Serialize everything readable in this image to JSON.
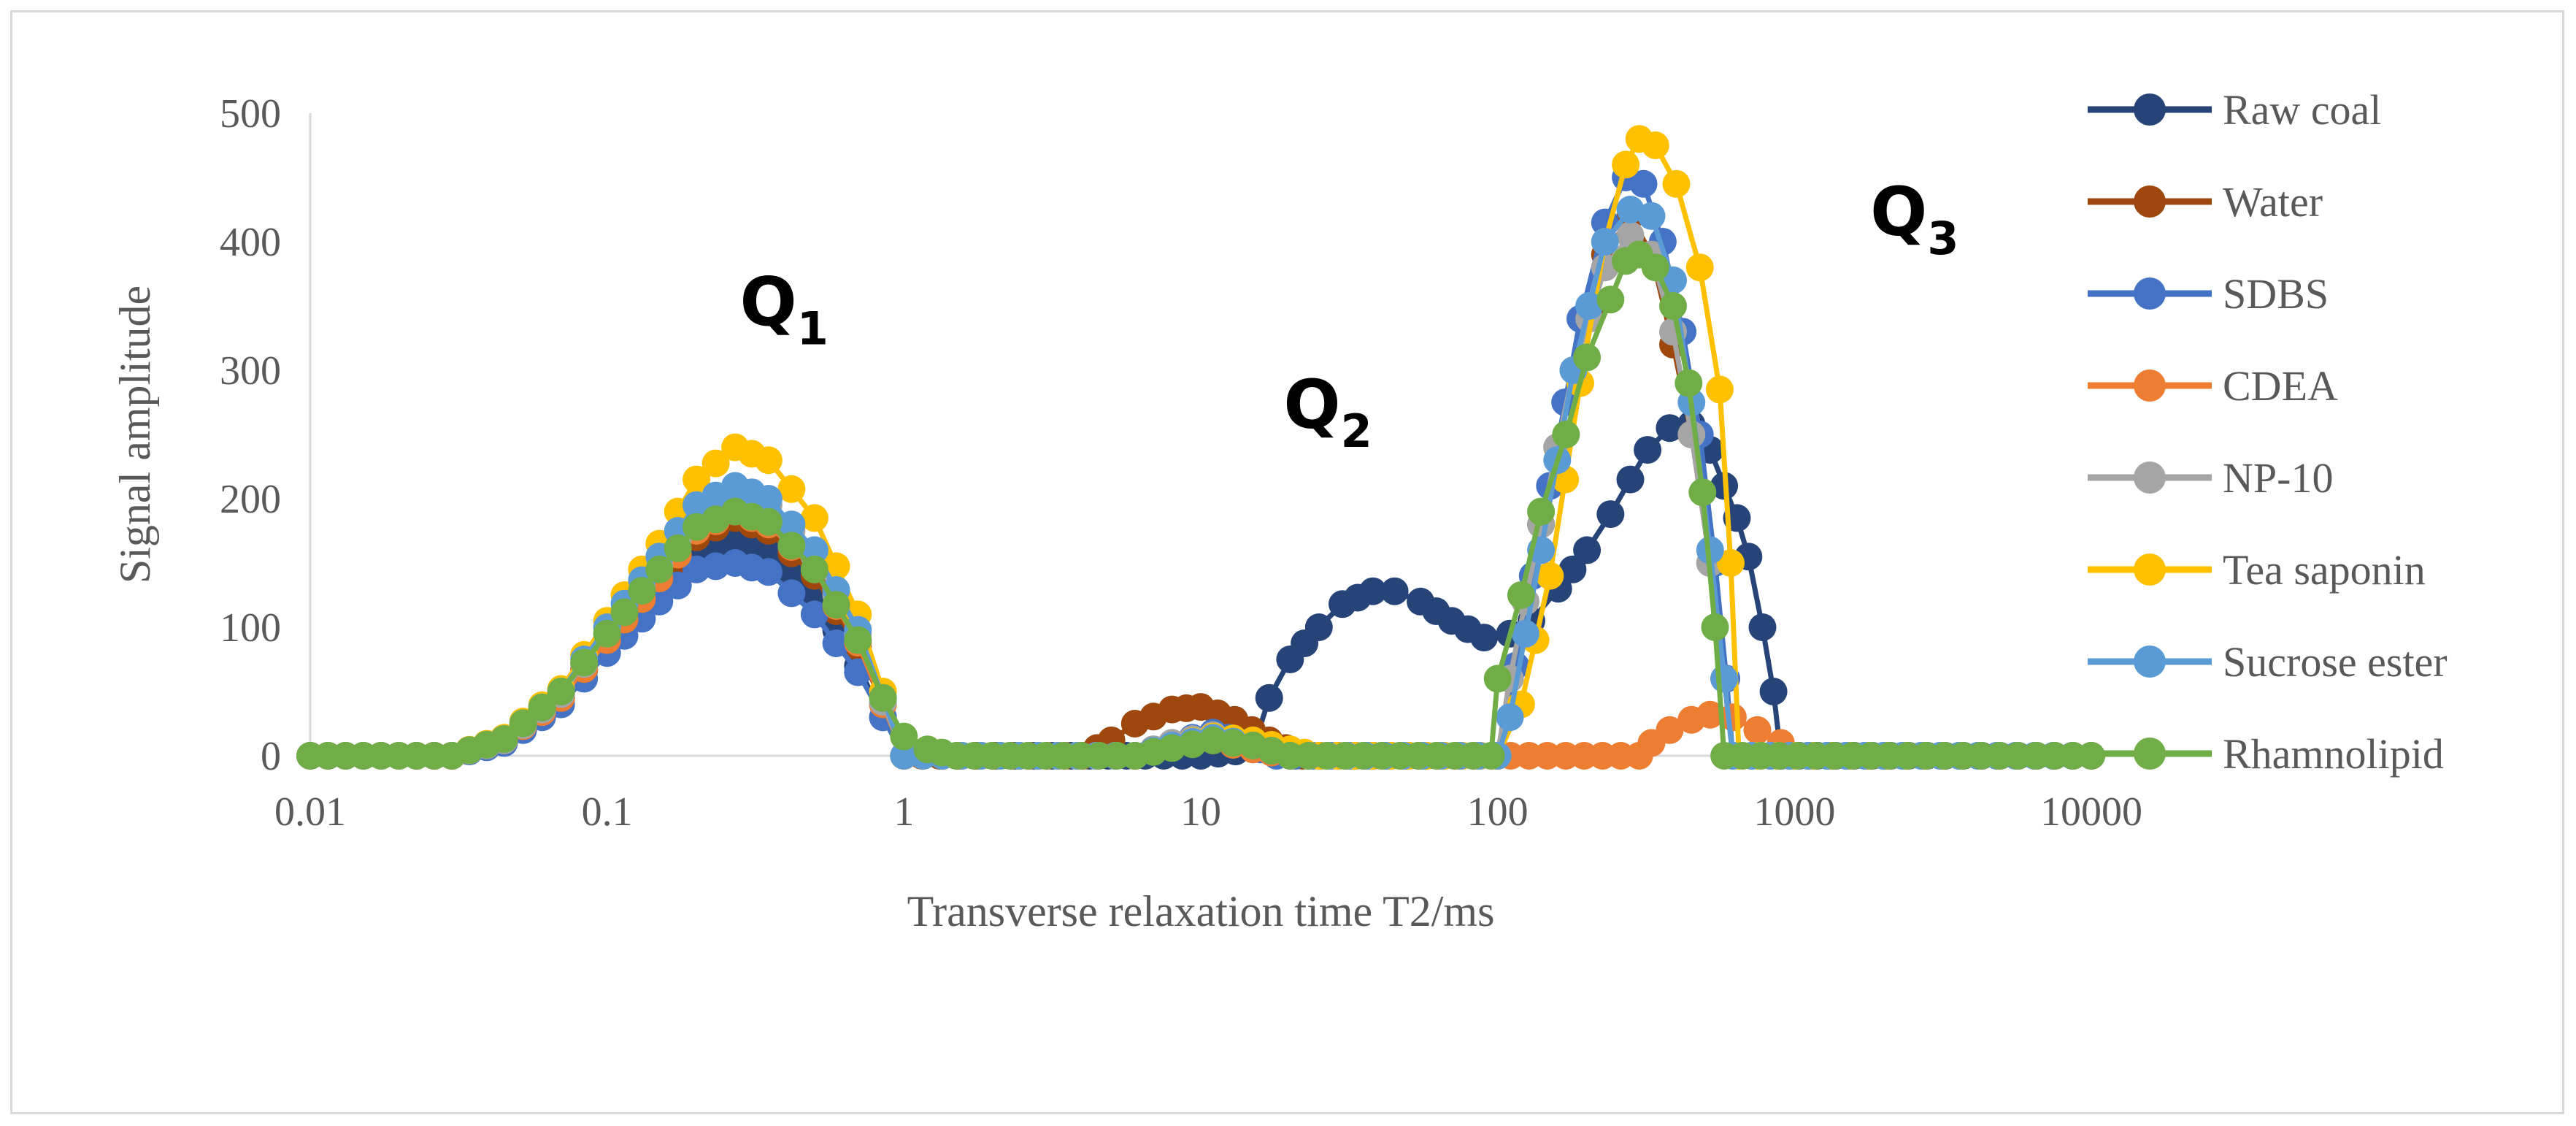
{
  "chart_data": {
    "type": "line",
    "xscale": "log",
    "xlabel": "Transverse relaxation time T2/ms",
    "ylabel": "Signal amplitude",
    "xlim": [
      0.01,
      10000
    ],
    "ylim": [
      0,
      500
    ],
    "x_ticks": [
      "0.01",
      "0.1",
      "1",
      "10",
      "100",
      "1000",
      "10000"
    ],
    "y_ticks": [
      "0",
      "100",
      "200",
      "300",
      "400",
      "500"
    ],
    "legend_position": "right",
    "annotations": [
      {
        "main": "Q",
        "sub": "1",
        "x": 0.28,
        "y": 335
      },
      {
        "main": "Q",
        "sub": "2",
        "x": 19,
        "y": 255
      },
      {
        "main": "Q",
        "sub": "3",
        "x": 1800,
        "y": 405
      }
    ],
    "series": [
      {
        "name": "Raw coal",
        "color": "#264478",
        "points": [
          [
            0.01,
            0
          ],
          [
            0.03,
            0
          ],
          [
            0.045,
            12
          ],
          [
            0.07,
            45
          ],
          [
            0.1,
            88
          ],
          [
            0.15,
            132
          ],
          [
            0.2,
            160
          ],
          [
            0.27,
            168
          ],
          [
            0.35,
            160
          ],
          [
            0.5,
            125
          ],
          [
            0.7,
            70
          ],
          [
            0.85,
            30
          ],
          [
            1,
            0
          ],
          [
            10,
            0
          ],
          [
            15,
            5
          ],
          [
            17,
            45
          ],
          [
            20,
            75
          ],
          [
            25,
            100
          ],
          [
            30,
            118
          ],
          [
            38,
            128
          ],
          [
            45,
            128
          ],
          [
            55,
            120
          ],
          [
            70,
            105
          ],
          [
            90,
            92
          ],
          [
            110,
            95
          ],
          [
            130,
            105
          ],
          [
            160,
            130
          ],
          [
            200,
            160
          ],
          [
            240,
            188
          ],
          [
            280,
            215
          ],
          [
            320,
            238
          ],
          [
            380,
            255
          ],
          [
            450,
            258
          ],
          [
            520,
            238
          ],
          [
            580,
            210
          ],
          [
            640,
            185
          ],
          [
            700,
            155
          ],
          [
            780,
            100
          ],
          [
            850,
            50
          ],
          [
            900,
            0
          ],
          [
            10000,
            0
          ]
        ]
      },
      {
        "name": "Water",
        "color": "#9E480E",
        "points": [
          [
            0.01,
            0
          ],
          [
            0.03,
            0
          ],
          [
            0.045,
            12
          ],
          [
            0.07,
            45
          ],
          [
            0.1,
            90
          ],
          [
            0.15,
            135
          ],
          [
            0.2,
            170
          ],
          [
            0.27,
            185
          ],
          [
            0.35,
            175
          ],
          [
            0.5,
            140
          ],
          [
            0.7,
            85
          ],
          [
            0.85,
            40
          ],
          [
            1,
            0
          ],
          [
            4,
            0
          ],
          [
            5,
            12
          ],
          [
            6,
            25
          ],
          [
            8,
            36
          ],
          [
            10,
            38
          ],
          [
            13,
            28
          ],
          [
            17,
            12
          ],
          [
            22,
            0
          ],
          [
            100,
            0
          ],
          [
            110,
            60
          ],
          [
            140,
            180
          ],
          [
            180,
            300
          ],
          [
            230,
            390
          ],
          [
            280,
            420
          ],
          [
            330,
            390
          ],
          [
            390,
            320
          ],
          [
            450,
            250
          ],
          [
            520,
            150
          ],
          [
            580,
            60
          ],
          [
            620,
            0
          ],
          [
            10000,
            0
          ]
        ]
      },
      {
        "name": "SDBS",
        "color": "#4472C4",
        "points": [
          [
            0.01,
            0
          ],
          [
            0.03,
            0
          ],
          [
            0.045,
            10
          ],
          [
            0.07,
            40
          ],
          [
            0.1,
            80
          ],
          [
            0.15,
            120
          ],
          [
            0.2,
            145
          ],
          [
            0.27,
            150
          ],
          [
            0.35,
            143
          ],
          [
            0.5,
            110
          ],
          [
            0.7,
            65
          ],
          [
            0.85,
            30
          ],
          [
            1,
            0
          ],
          [
            6,
            0
          ],
          [
            8,
            10
          ],
          [
            11,
            18
          ],
          [
            14,
            10
          ],
          [
            18,
            0
          ],
          [
            100,
            0
          ],
          [
            115,
            70
          ],
          [
            150,
            210
          ],
          [
            190,
            340
          ],
          [
            230,
            415
          ],
          [
            270,
            450
          ],
          [
            310,
            445
          ],
          [
            360,
            400
          ],
          [
            420,
            330
          ],
          [
            480,
            250
          ],
          [
            540,
            150
          ],
          [
            590,
            60
          ],
          [
            620,
            0
          ],
          [
            10000,
            0
          ]
        ]
      },
      {
        "name": "CDEA",
        "color": "#ED7D31",
        "points": [
          [
            0.01,
            0
          ],
          [
            0.03,
            0
          ],
          [
            0.045,
            12
          ],
          [
            0.07,
            45
          ],
          [
            0.1,
            90
          ],
          [
            0.15,
            138
          ],
          [
            0.2,
            175
          ],
          [
            0.27,
            190
          ],
          [
            0.35,
            180
          ],
          [
            0.5,
            145
          ],
          [
            0.7,
            88
          ],
          [
            0.85,
            40
          ],
          [
            1,
            0
          ],
          [
            6,
            0
          ],
          [
            8,
            8
          ],
          [
            11,
            12
          ],
          [
            15,
            5
          ],
          [
            20,
            0
          ],
          [
            300,
            0
          ],
          [
            330,
            10
          ],
          [
            380,
            20
          ],
          [
            450,
            28
          ],
          [
            520,
            32
          ],
          [
            620,
            30
          ],
          [
            750,
            20
          ],
          [
            900,
            10
          ],
          [
            1000,
            0
          ],
          [
            10000,
            0
          ]
        ]
      },
      {
        "name": "NP-10",
        "color": "#A5A5A5",
        "points": [
          [
            0.01,
            0
          ],
          [
            0.03,
            0
          ],
          [
            0.045,
            12
          ],
          [
            0.07,
            48
          ],
          [
            0.1,
            95
          ],
          [
            0.15,
            148
          ],
          [
            0.2,
            190
          ],
          [
            0.27,
            205
          ],
          [
            0.35,
            195
          ],
          [
            0.5,
            155
          ],
          [
            0.7,
            95
          ],
          [
            0.85,
            42
          ],
          [
            1,
            0
          ],
          [
            6,
            0
          ],
          [
            8,
            10
          ],
          [
            11,
            16
          ],
          [
            15,
            8
          ],
          [
            20,
            0
          ],
          [
            100,
            0
          ],
          [
            110,
            60
          ],
          [
            140,
            180
          ],
          [
            180,
            300
          ],
          [
            230,
            380
          ],
          [
            280,
            405
          ],
          [
            330,
            390
          ],
          [
            390,
            330
          ],
          [
            450,
            250
          ],
          [
            520,
            150
          ],
          [
            580,
            60
          ],
          [
            620,
            0
          ],
          [
            10000,
            0
          ]
        ]
      },
      {
        "name": "Tea saponin",
        "color": "#FFC000",
        "points": [
          [
            0.01,
            0
          ],
          [
            0.03,
            0
          ],
          [
            0.045,
            14
          ],
          [
            0.07,
            52
          ],
          [
            0.1,
            105
          ],
          [
            0.15,
            165
          ],
          [
            0.2,
            215
          ],
          [
            0.27,
            240
          ],
          [
            0.35,
            230
          ],
          [
            0.5,
            185
          ],
          [
            0.7,
            110
          ],
          [
            0.85,
            50
          ],
          [
            1,
            0
          ],
          [
            6,
            0
          ],
          [
            8,
            8
          ],
          [
            11,
            15
          ],
          [
            15,
            12
          ],
          [
            20,
            5
          ],
          [
            25,
            0
          ],
          [
            100,
            0
          ],
          [
            120,
            40
          ],
          [
            150,
            140
          ],
          [
            190,
            290
          ],
          [
            230,
            400
          ],
          [
            270,
            460
          ],
          [
            300,
            480
          ],
          [
            340,
            475
          ],
          [
            400,
            445
          ],
          [
            480,
            380
          ],
          [
            560,
            285
          ],
          [
            610,
            150
          ],
          [
            650,
            0
          ],
          [
            10000,
            0
          ]
        ]
      },
      {
        "name": "Sucrose ester",
        "color": "#5B9BD5",
        "points": [
          [
            0.01,
            0
          ],
          [
            0.03,
            0
          ],
          [
            0.045,
            13
          ],
          [
            0.07,
            50
          ],
          [
            0.1,
            100
          ],
          [
            0.15,
            155
          ],
          [
            0.2,
            195
          ],
          [
            0.27,
            210
          ],
          [
            0.35,
            200
          ],
          [
            0.5,
            160
          ],
          [
            0.7,
            98
          ],
          [
            0.85,
            45
          ],
          [
            1,
            0
          ],
          [
            6,
            0
          ],
          [
            8,
            8
          ],
          [
            11,
            14
          ],
          [
            15,
            8
          ],
          [
            20,
            0
          ],
          [
            100,
            0
          ],
          [
            110,
            30
          ],
          [
            140,
            160
          ],
          [
            180,
            300
          ],
          [
            230,
            400
          ],
          [
            280,
            425
          ],
          [
            330,
            420
          ],
          [
            390,
            370
          ],
          [
            450,
            275
          ],
          [
            520,
            160
          ],
          [
            580,
            60
          ],
          [
            620,
            0
          ],
          [
            10000,
            0
          ]
        ]
      },
      {
        "name": "Rhamnolipid",
        "color": "#70AD47",
        "points": [
          [
            0.01,
            0
          ],
          [
            0.03,
            0
          ],
          [
            0.045,
            13
          ],
          [
            0.07,
            50
          ],
          [
            0.1,
            95
          ],
          [
            0.15,
            145
          ],
          [
            0.2,
            178
          ],
          [
            0.27,
            190
          ],
          [
            0.35,
            182
          ],
          [
            0.5,
            145
          ],
          [
            0.7,
            90
          ],
          [
            0.85,
            45
          ],
          [
            1,
            15
          ],
          [
            1.2,
            5
          ],
          [
            1.5,
            0
          ],
          [
            6,
            0
          ],
          [
            8,
            6
          ],
          [
            11,
            12
          ],
          [
            15,
            8
          ],
          [
            20,
            0
          ],
          [
            95,
            0
          ],
          [
            100,
            60
          ],
          [
            120,
            125
          ],
          [
            140,
            190
          ],
          [
            170,
            250
          ],
          [
            200,
            310
          ],
          [
            240,
            355
          ],
          [
            270,
            385
          ],
          [
            300,
            390
          ],
          [
            340,
            380
          ],
          [
            390,
            350
          ],
          [
            440,
            290
          ],
          [
            490,
            205
          ],
          [
            540,
            100
          ],
          [
            580,
            0
          ],
          [
            10000,
            0
          ]
        ]
      }
    ]
  }
}
